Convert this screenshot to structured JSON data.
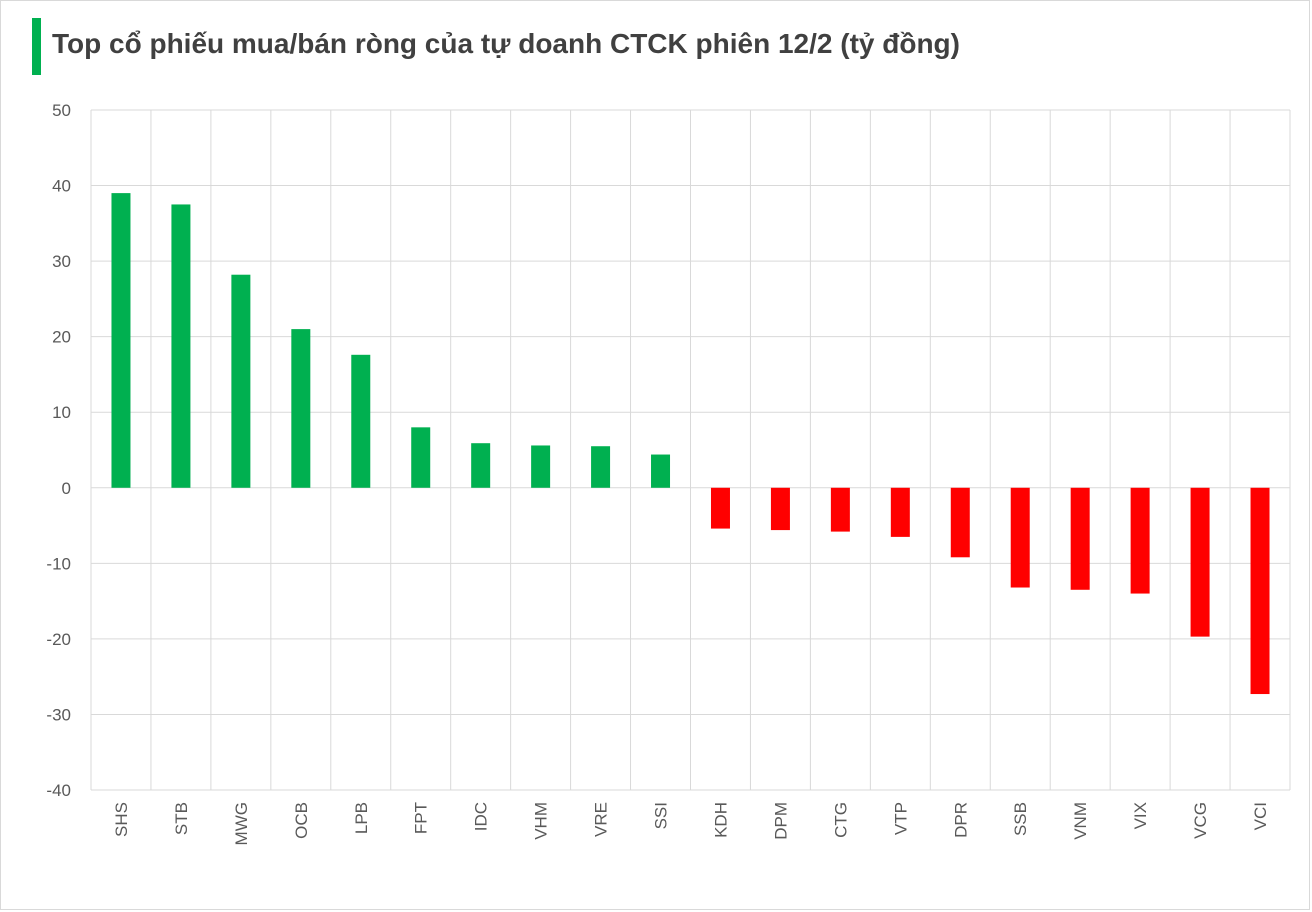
{
  "title": "Top cổ phiếu mua/bán ròng của tự doanh CTCK phiên 12/2 (tỷ đồng)",
  "chart_data": {
    "type": "bar",
    "title": "Top cổ phiếu mua/bán ròng của tự doanh CTCK phiên 12/2 (tỷ đồng)",
    "categories": [
      "SHS",
      "STB",
      "MWG",
      "OCB",
      "LPB",
      "FPT",
      "IDC",
      "VHM",
      "VRE",
      "SSI",
      "KDH",
      "DPM",
      "CTG",
      "VTP",
      "DPR",
      "SSB",
      "VNM",
      "VIX",
      "VCG",
      "VCI"
    ],
    "values": [
      39.0,
      37.5,
      28.2,
      21.0,
      17.6,
      8.0,
      5.9,
      5.6,
      5.5,
      4.4,
      -5.4,
      -5.6,
      -5.8,
      -6.5,
      -9.2,
      -13.2,
      -13.5,
      -14.0,
      -19.7,
      -27.3
    ],
    "ylim": [
      -40,
      50
    ],
    "yticks": [
      50,
      40,
      30,
      20,
      10,
      0,
      -10,
      -20,
      -30,
      -40
    ],
    "grid": true,
    "colors": {
      "positive": "#00b050",
      "negative": "#ff0000",
      "grid": "#d9d9d9"
    }
  }
}
